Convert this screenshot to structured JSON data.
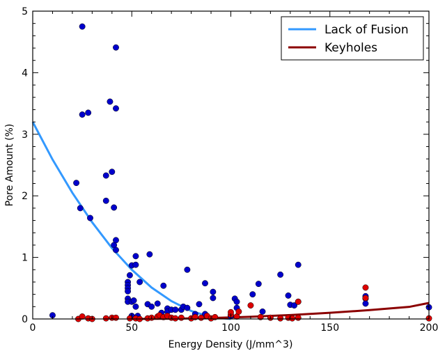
{
  "chart_data": {
    "type": "scatter",
    "title": "",
    "xlabel": "Energy Density (J/mm^3)",
    "ylabel": "Pore Amount (%)",
    "xlim": [
      0,
      200
    ],
    "ylim": [
      0,
      5
    ],
    "x_ticks": [
      "0",
      "50",
      "100",
      "150",
      "200"
    ],
    "y_ticks": [
      "0",
      "1",
      "2",
      "3",
      "4",
      "5"
    ],
    "grid": false,
    "legend_position": "top-right",
    "colors": {
      "lack_of_fusion_points": "#0000cc",
      "keyhole_points": "#dd0000",
      "lack_of_fusion_line": "#3399ff",
      "keyhole_line": "#8b0000"
    },
    "series": [
      {
        "name": "Lack of Fusion",
        "kind": "line",
        "color": "#3399ff",
        "x": [
          0,
          10,
          20,
          30,
          40,
          50,
          60,
          70,
          80,
          90,
          100
        ],
        "y": [
          3.2,
          2.59,
          2.05,
          1.57,
          1.15,
          0.8,
          0.51,
          0.29,
          0.13,
          0.03,
          0
        ]
      },
      {
        "name": "Keyholes",
        "kind": "line",
        "color": "#8b0000",
        "x": [
          50,
          70,
          90,
          110,
          130,
          150,
          170,
          190,
          200
        ],
        "y": [
          0,
          0.004,
          0.016,
          0.036,
          0.064,
          0.1,
          0.144,
          0.196,
          0.26
        ]
      },
      {
        "kind": "scatter",
        "color": "#0000cc",
        "points": [
          [
            10,
            0.06
          ],
          [
            22,
            2.21
          ],
          [
            24,
            1.8
          ],
          [
            25,
            4.75
          ],
          [
            25,
            3.32
          ],
          [
            28,
            3.35
          ],
          [
            29,
            1.64
          ],
          [
            37,
            2.33
          ],
          [
            37,
            1.92
          ],
          [
            39,
            3.53
          ],
          [
            40,
            2.39
          ],
          [
            41,
            1.81
          ],
          [
            41,
            1.2
          ],
          [
            42,
            4.41
          ],
          [
            42,
            3.42
          ],
          [
            42,
            1.28
          ],
          [
            42,
            1.12
          ],
          [
            48,
            0.6
          ],
          [
            48,
            0.55
          ],
          [
            48,
            0.5
          ],
          [
            48,
            0.45
          ],
          [
            48,
            0.33
          ],
          [
            48,
            0.28
          ],
          [
            49,
            0.71
          ],
          [
            50,
            0.87
          ],
          [
            50,
            0.28
          ],
          [
            50,
            0.05
          ],
          [
            51,
            0.3
          ],
          [
            52,
            1.02
          ],
          [
            52,
            0.88
          ],
          [
            52,
            0.2
          ],
          [
            53,
            0.05
          ],
          [
            54,
            0.6
          ],
          [
            58,
            0.24
          ],
          [
            59,
            1.05
          ],
          [
            60,
            0.2
          ],
          [
            63,
            0.25
          ],
          [
            65,
            0.1
          ],
          [
            66,
            0.54
          ],
          [
            68,
            0.17
          ],
          [
            68,
            0.12
          ],
          [
            70,
            0.15
          ],
          [
            72,
            0.15
          ],
          [
            75,
            0.15
          ],
          [
            76,
            0.2
          ],
          [
            78,
            0.18
          ],
          [
            78,
            0.8
          ],
          [
            82,
            0.08
          ],
          [
            84,
            0.24
          ],
          [
            87,
            0.58
          ],
          [
            87,
            0.08
          ],
          [
            91,
            0.34
          ],
          [
            91,
            0.44
          ],
          [
            100,
            0.05
          ],
          [
            102,
            0.33
          ],
          [
            103,
            0.28
          ],
          [
            103,
            0.18
          ],
          [
            111,
            0.4
          ],
          [
            114,
            0.57
          ],
          [
            116,
            0.12
          ],
          [
            125,
            0.72
          ],
          [
            129,
            0.38
          ],
          [
            130,
            0.23
          ],
          [
            132,
            0.22
          ],
          [
            134,
            0.88
          ],
          [
            134,
            0.28
          ],
          [
            168,
            0.37
          ],
          [
            168,
            0.33
          ],
          [
            168,
            0.25
          ],
          [
            200,
            0.19
          ]
        ]
      },
      {
        "kind": "scatter",
        "color": "#dd0000",
        "points": [
          [
            23,
            0
          ],
          [
            25,
            0.04
          ],
          [
            28,
            0.01
          ],
          [
            30,
            0
          ],
          [
            37,
            0.01
          ],
          [
            40,
            0.02
          ],
          [
            42,
            0.02
          ],
          [
            49,
            0.01
          ],
          [
            52,
            0.01
          ],
          [
            54,
            0
          ],
          [
            58,
            0.01
          ],
          [
            60,
            0.02
          ],
          [
            63,
            0.04
          ],
          [
            64,
            0.06
          ],
          [
            66,
            0.03
          ],
          [
            68,
            0.05
          ],
          [
            70,
            0.02
          ],
          [
            72,
            0.01
          ],
          [
            75,
            0.02
          ],
          [
            80,
            0.01
          ],
          [
            82,
            0.03
          ],
          [
            85,
            0.02
          ],
          [
            88,
            0.05
          ],
          [
            90,
            0.01
          ],
          [
            92,
            0.03
          ],
          [
            100,
            0.07
          ],
          [
            100,
            0.11
          ],
          [
            103,
            0.04
          ],
          [
            104,
            0.12
          ],
          [
            110,
            0.22
          ],
          [
            115,
            0.03
          ],
          [
            120,
            0.02
          ],
          [
            125,
            0.01
          ],
          [
            129,
            0.02
          ],
          [
            131,
            0.01
          ],
          [
            134,
            0.28
          ],
          [
            134,
            0.02
          ],
          [
            168,
            0.51
          ],
          [
            168,
            0.34
          ],
          [
            200,
            0.01
          ]
        ]
      }
    ]
  }
}
